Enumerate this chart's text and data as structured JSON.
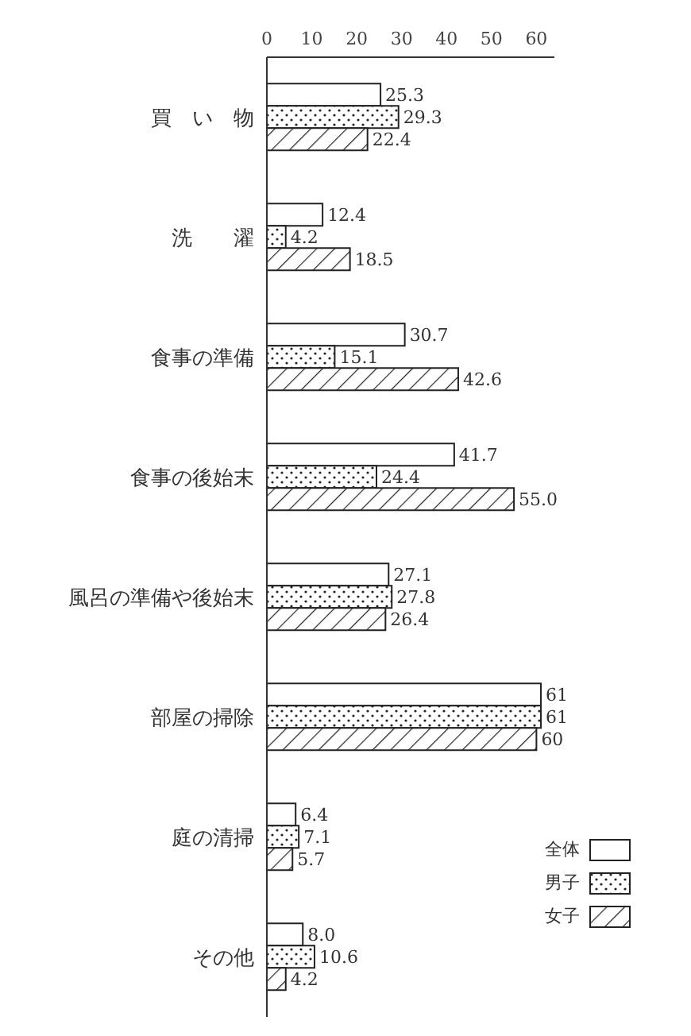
{
  "chart_data": {
    "type": "bar",
    "orientation": "horizontal",
    "categories": [
      "買　い　物",
      "洗　　濯",
      "食事の準備",
      "食事の後始末",
      "風呂の準備や後始末",
      "部屋の掃除",
      "庭の清掃",
      "その他"
    ],
    "series": [
      {
        "name": "全体",
        "color": "#ffffff",
        "values": [
          25.3,
          12.4,
          30.7,
          41.7,
          27.1,
          61,
          6.4,
          8.0
        ],
        "value_labels": [
          "25.3",
          "12.4",
          "30.7",
          "41.7",
          "27.1",
          "61",
          "6.4",
          "8.0"
        ]
      },
      {
        "name": "男子",
        "color": "#222222",
        "values": [
          29.3,
          4.2,
          15.1,
          24.4,
          27.8,
          61,
          7.1,
          10.6
        ],
        "value_labels": [
          "29.3",
          "4.2",
          "15.1",
          "24.4",
          "27.8",
          "61",
          "7.1",
          "10.6"
        ]
      },
      {
        "name": "女子",
        "color": "#222222",
        "values": [
          22.4,
          18.5,
          42.6,
          55.0,
          26.4,
          60,
          5.7,
          4.2
        ],
        "value_labels": [
          "22.4",
          "18.5",
          "42.6",
          "55.0",
          "26.4",
          "60",
          "5.7",
          "4.2"
        ]
      }
    ],
    "xlim": [
      0,
      64
    ],
    "xticks": [
      0,
      10,
      20,
      30,
      40,
      50,
      60
    ],
    "grid": false,
    "legend": "bottom right"
  }
}
